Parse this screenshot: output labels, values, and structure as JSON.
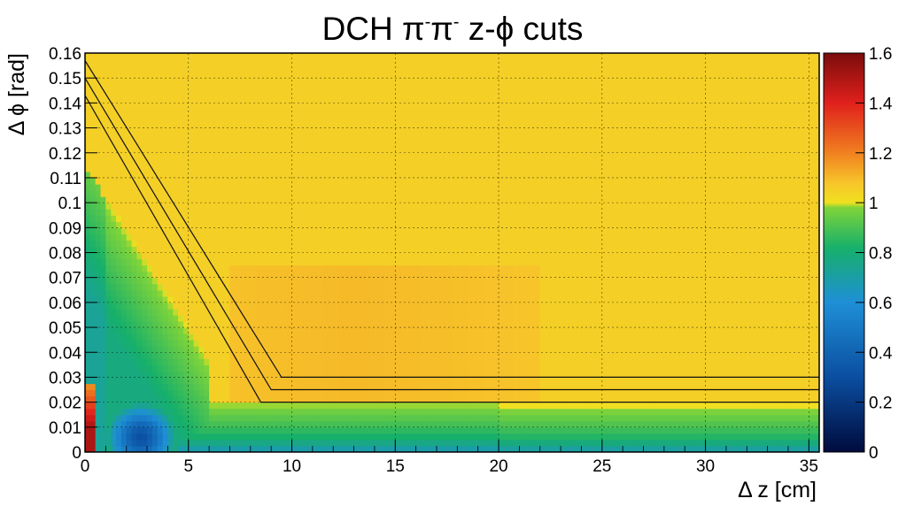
{
  "chart_data": {
    "type": "heatmap",
    "title": {
      "prefix": "DCH ",
      "particle1": "π",
      "charge1": "-",
      "particle2": "π",
      "charge2": "-",
      "suffix_a": "  z-",
      "phi": "ϕ",
      "suffix_b": " cuts"
    },
    "xlabel": "Δ z [cm]",
    "ylabel": "Δ ϕ [rad]",
    "xlim": [
      0,
      35.5
    ],
    "ylim": [
      0,
      0.16
    ],
    "x_ticks": [
      0,
      5,
      10,
      15,
      20,
      25,
      30,
      35
    ],
    "x_tick_labels": [
      "0",
      "5",
      "10",
      "15",
      "20",
      "25",
      "30",
      "35"
    ],
    "y_ticks": [
      0,
      0.01,
      0.02,
      0.03,
      0.04,
      0.05,
      0.06,
      0.07,
      0.08,
      0.09,
      0.1,
      0.11,
      0.12,
      0.13,
      0.14,
      0.15,
      0.16
    ],
    "y_tick_labels": [
      "0",
      "0.01",
      "0.02",
      "0.03",
      "0.04",
      "0.05",
      "0.06",
      "0.07",
      "0.08",
      "0.09",
      "0.1",
      "0.11",
      "0.12",
      "0.13",
      "0.14",
      "0.15",
      "0.16"
    ],
    "grid": true,
    "colorbar": {
      "range": [
        0,
        1.6
      ],
      "ticks": [
        0,
        0.2,
        0.4,
        0.6,
        0.8,
        1,
        1.2,
        1.4,
        1.6
      ],
      "tick_labels": [
        "0",
        "0.2",
        "0.4",
        "0.6",
        "0.8",
        "1",
        "1.2",
        "1.4",
        "1.6"
      ],
      "stops": [
        {
          "v": 0.0,
          "color": "#000b3d"
        },
        {
          "v": 0.3,
          "color": "#0b4ea0"
        },
        {
          "v": 0.6,
          "color": "#1e8fd6"
        },
        {
          "v": 0.82,
          "color": "#17b06a"
        },
        {
          "v": 0.98,
          "color": "#7fd43a"
        },
        {
          "v": 1.0,
          "color": "#f0e020"
        },
        {
          "v": 1.08,
          "color": "#f7c52a"
        },
        {
          "v": 1.2,
          "color": "#f08020"
        },
        {
          "v": 1.4,
          "color": "#e0201c"
        },
        {
          "v": 1.6,
          "color": "#7a0c0c"
        }
      ]
    },
    "cut_lines": [
      {
        "points": [
          [
            0,
            0.157
          ],
          [
            9.5,
            0.03
          ],
          [
            35.5,
            0.03
          ]
        ]
      },
      {
        "points": [
          [
            0,
            0.15
          ],
          [
            9.0,
            0.025
          ],
          [
            35.5,
            0.025
          ]
        ]
      },
      {
        "points": [
          [
            0,
            0.143
          ],
          [
            8.5,
            0.02
          ],
          [
            35.5,
            0.02
          ]
        ]
      }
    ],
    "regions": {
      "background_value": 1.05,
      "diagonal_band_value": 1.1,
      "low_dphi_band": [
        {
          "dphi": 0.0,
          "value": 0.65
        },
        {
          "dphi": 0.005,
          "value": 0.8
        },
        {
          "dphi": 0.012,
          "value": 0.9
        },
        {
          "dphi": 0.02,
          "value": 1.0
        }
      ],
      "small_dz_peak": {
        "dz_max": 0.6,
        "dphi_max": 0.028,
        "value": 1.5
      },
      "blue_blob": {
        "dz_center": 2.7,
        "dphi_center": 0.006,
        "value": 0.3
      }
    }
  }
}
